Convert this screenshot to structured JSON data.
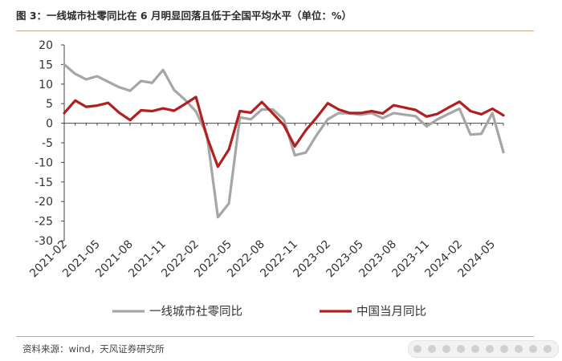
{
  "title": "图 3：一线城市社零同比在 6 月明显回落且低于全国平均水平（单位：%）",
  "source": "资料来源：wind，天风证券研究所",
  "chart_data": {
    "type": "line",
    "ylim": [
      -30,
      20
    ],
    "yticks": [
      20,
      15,
      10,
      5,
      0,
      -5,
      -10,
      -15,
      -20,
      -25,
      -30
    ],
    "xticks": [
      "2021-02",
      "2021-05",
      "2021-08",
      "2021-11",
      "2022-02",
      "2022-05",
      "2022-08",
      "2022-11",
      "2023-02",
      "2023-05",
      "2023-08",
      "2023-11",
      "2024-02",
      "2024-05"
    ],
    "x": [
      "2021-02",
      "2021-03",
      "2021-04",
      "2021-05",
      "2021-06",
      "2021-07",
      "2021-08",
      "2021-09",
      "2021-10",
      "2021-11",
      "2021-12",
      "2022-01",
      "2022-02",
      "2022-03",
      "2022-04",
      "2022-05",
      "2022-06",
      "2022-07",
      "2022-08",
      "2022-09",
      "2022-10",
      "2022-11",
      "2022-12",
      "2023-01",
      "2023-02",
      "2023-03",
      "2023-04",
      "2023-05",
      "2023-06",
      "2023-07",
      "2023-08",
      "2023-09",
      "2023-10",
      "2023-11",
      "2023-12",
      "2024-01",
      "2024-02",
      "2024-03",
      "2024-04",
      "2024-05",
      "2024-06"
    ],
    "grid": false,
    "legend_position": "bottom",
    "series": [
      {
        "name": "一线城市社零同比",
        "color": "#a6a6a6",
        "values": [
          15.0,
          12.6,
          11.2,
          12.0,
          10.6,
          9.2,
          8.3,
          10.8,
          10.3,
          13.6,
          8.5,
          6.0,
          3.0,
          -3.0,
          -24.0,
          -20.5,
          1.5,
          1.0,
          3.5,
          3.5,
          1.0,
          -8.2,
          -7.5,
          -3.0,
          1.0,
          2.6,
          2.5,
          2.2,
          2.6,
          1.3,
          2.6,
          2.2,
          1.8,
          -0.8,
          1.0,
          2.4,
          3.7,
          -2.9,
          -2.7,
          2.6,
          -7.4
        ]
      },
      {
        "name": "中国当月同比",
        "color": "#b11f1f",
        "values": [
          2.6,
          5.8,
          4.2,
          4.5,
          5.2,
          2.7,
          0.8,
          3.3,
          3.1,
          3.8,
          3.2,
          4.9,
          6.7,
          -3.5,
          -11.1,
          -6.7,
          3.1,
          2.7,
          5.4,
          2.5,
          -0.5,
          -5.9,
          -1.8,
          1.5,
          5.1,
          3.5,
          2.6,
          2.6,
          3.1,
          2.5,
          4.6,
          4.0,
          3.4,
          1.7,
          2.4,
          4.0,
          5.5,
          3.1,
          2.3,
          3.7,
          2.0
        ]
      }
    ]
  }
}
